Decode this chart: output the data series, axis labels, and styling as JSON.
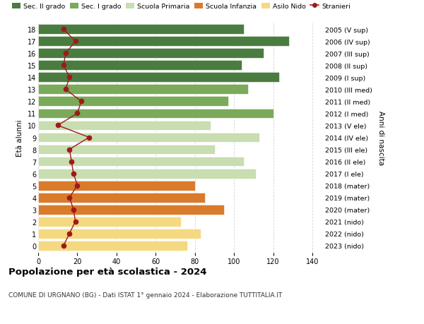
{
  "ages": [
    18,
    17,
    16,
    15,
    14,
    13,
    12,
    11,
    10,
    9,
    8,
    7,
    6,
    5,
    4,
    3,
    2,
    1,
    0
  ],
  "bar_values": [
    105,
    128,
    115,
    104,
    123,
    107,
    97,
    120,
    88,
    113,
    90,
    105,
    111,
    80,
    85,
    95,
    73,
    83,
    76
  ],
  "stranieri": [
    13,
    19,
    14,
    13,
    16,
    14,
    22,
    20,
    10,
    26,
    16,
    17,
    18,
    20,
    16,
    18,
    19,
    16,
    13
  ],
  "right_labels": [
    "2005 (V sup)",
    "2006 (IV sup)",
    "2007 (III sup)",
    "2008 (II sup)",
    "2009 (I sup)",
    "2010 (III med)",
    "2011 (II med)",
    "2012 (I med)",
    "2013 (V ele)",
    "2014 (IV ele)",
    "2015 (III ele)",
    "2016 (II ele)",
    "2017 (I ele)",
    "2018 (mater)",
    "2019 (mater)",
    "2020 (mater)",
    "2021 (nido)",
    "2022 (nido)",
    "2023 (nido)"
  ],
  "bar_colors": [
    "#4a7c3f",
    "#4a7c3f",
    "#4a7c3f",
    "#4a7c3f",
    "#4a7c3f",
    "#7aaa5a",
    "#7aaa5a",
    "#7aaa5a",
    "#c8ddb0",
    "#c8ddb0",
    "#c8ddb0",
    "#c8ddb0",
    "#c8ddb0",
    "#d97b2a",
    "#d97b2a",
    "#d97b2a",
    "#f5d980",
    "#f5d980",
    "#f5d980"
  ],
  "legend_labels": [
    "Sec. II grado",
    "Sec. I grado",
    "Scuola Primaria",
    "Scuola Infanzia",
    "Asilo Nido",
    "Stranieri"
  ],
  "legend_colors": [
    "#4a7c3f",
    "#7aaa5a",
    "#c8ddb0",
    "#d97b2a",
    "#f5d980",
    "#9e1a1a"
  ],
  "stranieri_color": "#9e1a1a",
  "title": "Popolazione per età scolastica - 2024",
  "subtitle": "COMUNE DI URGNANO (BG) - Dati ISTAT 1° gennaio 2024 - Elaborazione TUTTITALIA.IT",
  "ylabel_left": "Età alunni",
  "ylabel_right": "Anni di nascita",
  "xlim": [
    0,
    145
  ],
  "xticks": [
    0,
    20,
    40,
    60,
    80,
    100,
    120,
    140
  ],
  "background_color": "#ffffff",
  "grid_color": "#cccccc",
  "bar_height": 0.82
}
